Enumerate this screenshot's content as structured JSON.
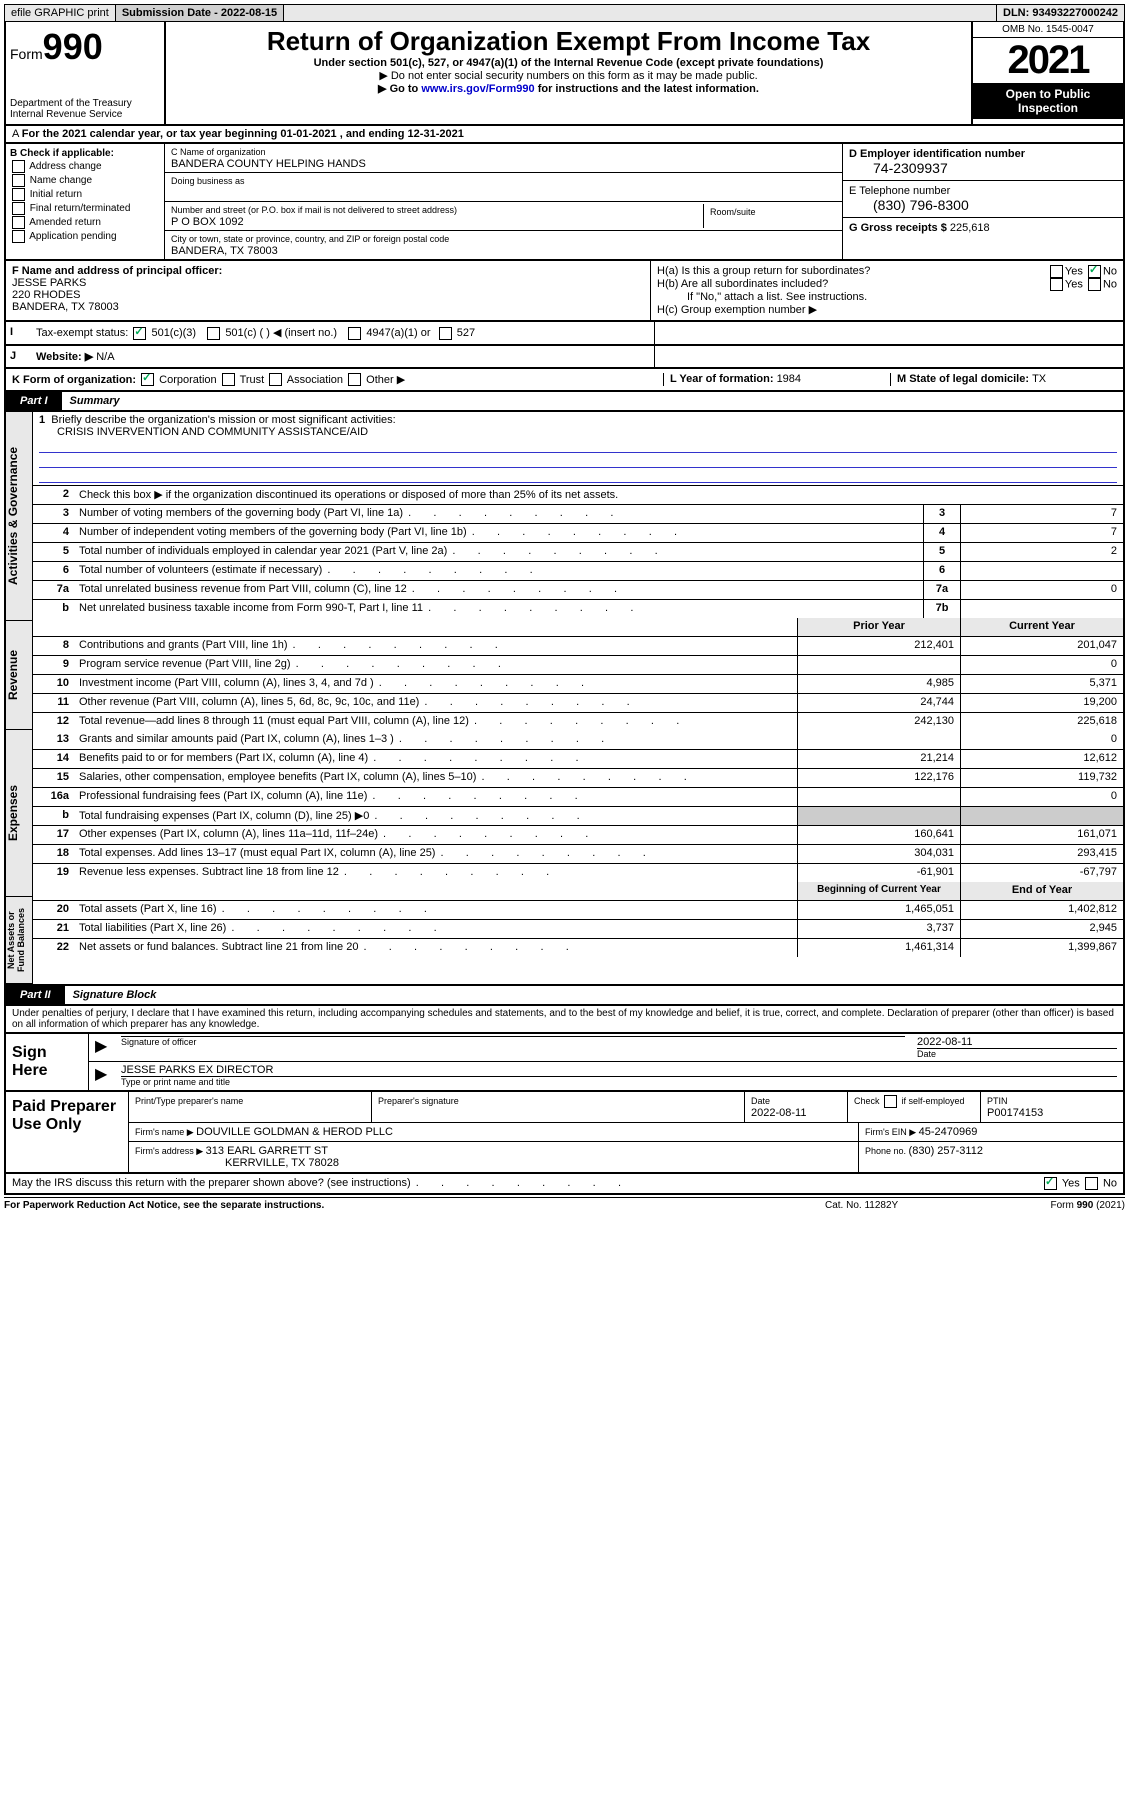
{
  "topbar": {
    "efile": "efile GRAPHIC print",
    "subdate_lbl": "Submission Date - ",
    "subdate": "2022-08-15",
    "dln_lbl": "DLN: ",
    "dln": "93493227000242"
  },
  "header": {
    "form_word": "Form",
    "form_num": "990",
    "dept": "Department of the Treasury",
    "irs": "Internal Revenue Service",
    "title": "Return of Organization Exempt From Income Tax",
    "sub1": "Under section 501(c), 527, or 4947(a)(1) of the Internal Revenue Code (except private foundations)",
    "sub2": "▶ Do not enter social security numbers on this form as it may be made public.",
    "sub3_pre": "▶ Go to ",
    "sub3_link": "www.irs.gov/Form990",
    "sub3_post": " for instructions and the latest information.",
    "omb": "OMB No. 1545-0047",
    "year": "2021",
    "inspect": "Open to Public Inspection"
  },
  "line_a": "For the 2021 calendar year, or tax year beginning 01-01-2021   , and ending 12-31-2021",
  "col_b": {
    "hdr": "B Check if applicable:",
    "items": [
      "Address change",
      "Name change",
      "Initial return",
      "Final return/terminated",
      "Amended return",
      "Application pending"
    ]
  },
  "col_c": {
    "name_lbl": "C Name of organization",
    "name": "BANDERA COUNTY HELPING HANDS",
    "dba_lbl": "Doing business as",
    "street_lbl": "Number and street (or P.O. box if mail is not delivered to street address)",
    "room_lbl": "Room/suite",
    "street": "P O BOX 1092",
    "city_lbl": "City or town, state or province, country, and ZIP or foreign postal code",
    "city": "BANDERA, TX   78003"
  },
  "col_de": {
    "d_lbl": "D Employer identification number",
    "ein": "74-2309937",
    "e_lbl": "E Telephone number",
    "phone": "(830) 796-8300",
    "g_lbl": "G Gross receipts $ ",
    "gross": "225,618"
  },
  "block_f": {
    "f_lbl": "F Name and address of principal officer:",
    "name": "JESSE PARKS",
    "addr1": "220 RHODES",
    "addr2": "BANDERA, TX   78003"
  },
  "block_h": {
    "ha": "H(a)  Is this a group return for subordinates?",
    "hb": "H(b)  Are all subordinates included?",
    "hb2": "If \"No,\" attach a list. See instructions.",
    "hc": "H(c)  Group exemption number ▶",
    "yes": "Yes",
    "no": "No"
  },
  "row_i": {
    "lbl": "Tax-exempt status:",
    "c1": "501(c)(3)",
    "c2": "501(c) (   ) ◀ (insert no.)",
    "c3": "4947(a)(1) or",
    "c4": "527"
  },
  "row_j": {
    "lbl": "Website: ▶",
    "val": "N/A"
  },
  "row_k": {
    "lbl": "K Form of organization:",
    "opts": [
      "Corporation",
      "Trust",
      "Association",
      "Other ▶"
    ],
    "l_lbl": "L Year of formation: ",
    "l_val": "1984",
    "m_lbl": "M State of legal domicile: ",
    "m_val": "TX"
  },
  "parts": {
    "p1": "Part I",
    "p1t": "Summary",
    "p2": "Part II",
    "p2t": "Signature Block"
  },
  "vtabs": [
    "Activities & Governance",
    "Revenue",
    "Expenses",
    "Net Assets or Fund Balances"
  ],
  "summary": {
    "l1": "Briefly describe the organization's mission or most significant activities:",
    "l1v": "CRISIS INVERVENTION AND COMMUNITY ASSISTANCE/AID",
    "l2": "Check this box ▶       if the organization discontinued its operations or disposed of more than 25% of its net assets.",
    "lines_top": [
      {
        "n": "3",
        "t": "Number of voting members of the governing body (Part VI, line 1a)",
        "rn": "3",
        "v": "7"
      },
      {
        "n": "4",
        "t": "Number of independent voting members of the governing body (Part VI, line 1b)",
        "rn": "4",
        "v": "7"
      },
      {
        "n": "5",
        "t": "Total number of individuals employed in calendar year 2021 (Part V, line 2a)",
        "rn": "5",
        "v": "2"
      },
      {
        "n": "6",
        "t": "Total number of volunteers (estimate if necessary)",
        "rn": "6",
        "v": ""
      },
      {
        "n": "7a",
        "t": "Total unrelated business revenue from Part VIII, column (C), line 12",
        "rn": "7a",
        "v": "0"
      },
      {
        "n": "b",
        "t": "Net unrelated business taxable income from Form 990-T, Part I, line 11",
        "rn": "7b",
        "v": ""
      }
    ],
    "col_hdr": {
      "py": "Prior Year",
      "cy": "Current Year",
      "bcy": "Beginning of Current Year",
      "eoy": "End of Year"
    },
    "rev": [
      {
        "n": "8",
        "t": "Contributions and grants (Part VIII, line 1h)",
        "p": "212,401",
        "c": "201,047"
      },
      {
        "n": "9",
        "t": "Program service revenue (Part VIII, line 2g)",
        "p": "",
        "c": "0"
      },
      {
        "n": "10",
        "t": "Investment income (Part VIII, column (A), lines 3, 4, and 7d )",
        "p": "4,985",
        "c": "5,371"
      },
      {
        "n": "11",
        "t": "Other revenue (Part VIII, column (A), lines 5, 6d, 8c, 9c, 10c, and 11e)",
        "p": "24,744",
        "c": "19,200"
      },
      {
        "n": "12",
        "t": "Total revenue—add lines 8 through 11 (must equal Part VIII, column (A), line 12)",
        "p": "242,130",
        "c": "225,618"
      }
    ],
    "exp": [
      {
        "n": "13",
        "t": "Grants and similar amounts paid (Part IX, column (A), lines 1–3 )",
        "p": "",
        "c": "0"
      },
      {
        "n": "14",
        "t": "Benefits paid to or for members (Part IX, column (A), line 4)",
        "p": "21,214",
        "c": "12,612"
      },
      {
        "n": "15",
        "t": "Salaries, other compensation, employee benefits (Part IX, column (A), lines 5–10)",
        "p": "122,176",
        "c": "119,732"
      },
      {
        "n": "16a",
        "t": "Professional fundraising fees (Part IX, column (A), line 11e)",
        "p": "",
        "c": "0"
      },
      {
        "n": "b",
        "t": "Total fundraising expenses (Part IX, column (D), line 25) ▶0",
        "p": "GRAY",
        "c": "GRAY"
      },
      {
        "n": "17",
        "t": "Other expenses (Part IX, column (A), lines 11a–11d, 11f–24e)",
        "p": "160,641",
        "c": "161,071"
      },
      {
        "n": "18",
        "t": "Total expenses. Add lines 13–17 (must equal Part IX, column (A), line 25)",
        "p": "304,031",
        "c": "293,415"
      },
      {
        "n": "19",
        "t": "Revenue less expenses. Subtract line 18 from line 12",
        "p": "-61,901",
        "c": "-67,797"
      }
    ],
    "net": [
      {
        "n": "20",
        "t": "Total assets (Part X, line 16)",
        "p": "1,465,051",
        "c": "1,402,812"
      },
      {
        "n": "21",
        "t": "Total liabilities (Part X, line 26)",
        "p": "3,737",
        "c": "2,945"
      },
      {
        "n": "22",
        "t": "Net assets or fund balances. Subtract line 21 from line 20",
        "p": "1,461,314",
        "c": "1,399,867"
      }
    ]
  },
  "sig_decl": "Under penalties of perjury, I declare that I have examined this return, including accompanying schedules and statements, and to the best of my knowledge and belief, it is true, correct, and complete. Declaration of preparer (other than officer) is based on all information of which preparer has any knowledge.",
  "sign": {
    "here": "Sign Here",
    "sig_off": "Signature of officer",
    "date_lbl": "Date",
    "date": "2022-08-11",
    "name": "JESSE PARKS EX DIRECTOR",
    "name_lbl": "Type or print name and title"
  },
  "prep": {
    "hdr": "Paid Preparer Use Only",
    "c1": "Print/Type preparer's name",
    "c2": "Preparer's signature",
    "c3": "Date",
    "c3v": "2022-08-11",
    "c4": "Check        if self-employed",
    "c5": "PTIN",
    "c5v": "P00174153",
    "firm_lbl": "Firm's name     ▶ ",
    "firm": "DOUVILLE GOLDMAN & HEROD PLLC",
    "ein_lbl": "Firm's EIN ▶ ",
    "ein": "45-2470969",
    "addr_lbl": "Firm's address ▶ ",
    "addr1": "313 EARL GARRETT ST",
    "addr2": "KERRVILLE, TX   78028",
    "phone_lbl": "Phone no. ",
    "phone": "(830) 257-3112"
  },
  "discuss": "May the IRS discuss this return with the preparer shown above? (see instructions)",
  "footer": {
    "l": "For Paperwork Reduction Act Notice, see the separate instructions.",
    "m": "Cat. No. 11282Y",
    "r": "Form 990 (2021)"
  }
}
